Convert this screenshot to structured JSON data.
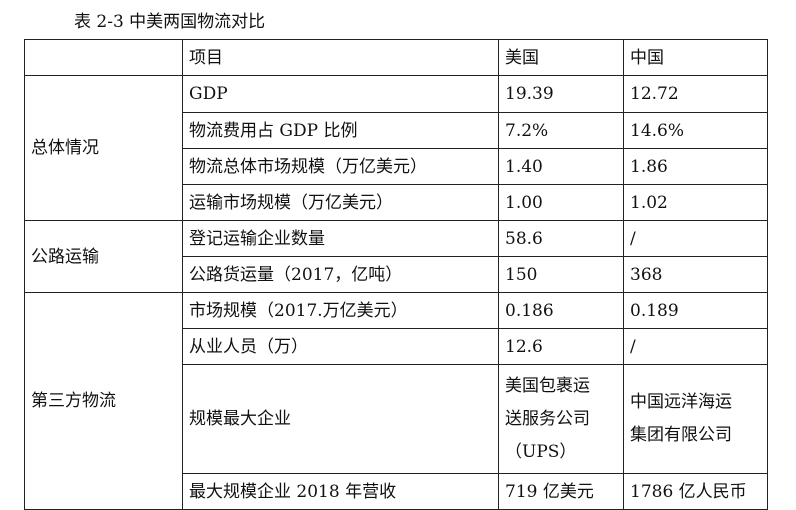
{
  "caption": "表 2-3 中美两国物流对比",
  "table": {
    "header": {
      "category": "",
      "item": "项目",
      "usa": "美国",
      "china": "中国"
    },
    "groups": [
      {
        "category": "总体情况",
        "rows": [
          {
            "item": "GDP",
            "usa": "19.39",
            "china": "12.72"
          },
          {
            "item": "物流费用占 GDP 比例",
            "usa": "7.2%",
            "china": "14.6%"
          },
          {
            "item": "物流总体市场规模（万亿美元）",
            "usa": "1.40",
            "china": "1.86"
          },
          {
            "item": "运输市场规模（万亿美元）",
            "usa": "1.00",
            "china": "1.02"
          }
        ]
      },
      {
        "category": "公路运输",
        "rows": [
          {
            "item": "登记运输企业数量",
            "usa": "58.6",
            "china": "/"
          },
          {
            "item": "公路货运量（2017，亿吨）",
            "usa": "150",
            "china": "368"
          }
        ]
      },
      {
        "category": "第三方物流",
        "rows": [
          {
            "item": "市场规模（2017.万亿美元）",
            "usa": "0.186",
            "china": "0.189"
          },
          {
            "item": "从业人员（万）",
            "usa": "12.6",
            "china": "/"
          },
          {
            "item": "规模最大企业",
            "usa_lines": [
              "美国包裹运",
              "送服务公司",
              "（UPS）"
            ],
            "china_lines": [
              "中国远洋海运",
              "集团有限公司"
            ]
          },
          {
            "item": "最大规模企业 2018 年营收",
            "usa": "719 亿美元",
            "china": "1786 亿人民币"
          }
        ]
      }
    ]
  }
}
